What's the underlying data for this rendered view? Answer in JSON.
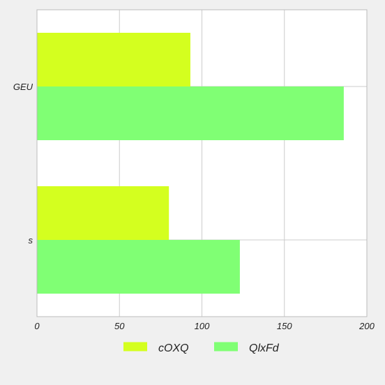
{
  "chart_data": {
    "type": "bar",
    "orientation": "horizontal",
    "categories": [
      "GEU",
      "s"
    ],
    "series": [
      {
        "name": "cOXQ",
        "color": "#d4ff1f",
        "values": [
          93,
          80
        ]
      },
      {
        "name": "QlxFd",
        "color": "#80ff74",
        "values": [
          186,
          123
        ]
      }
    ],
    "xlim": [
      0,
      200
    ],
    "xticks": [
      0,
      50,
      100,
      150,
      200
    ],
    "grid": true,
    "legend_position": "bottom"
  },
  "colors": {
    "background": "#f0f0f0",
    "plot_background": "#ffffff",
    "grid": "#cccccc"
  }
}
